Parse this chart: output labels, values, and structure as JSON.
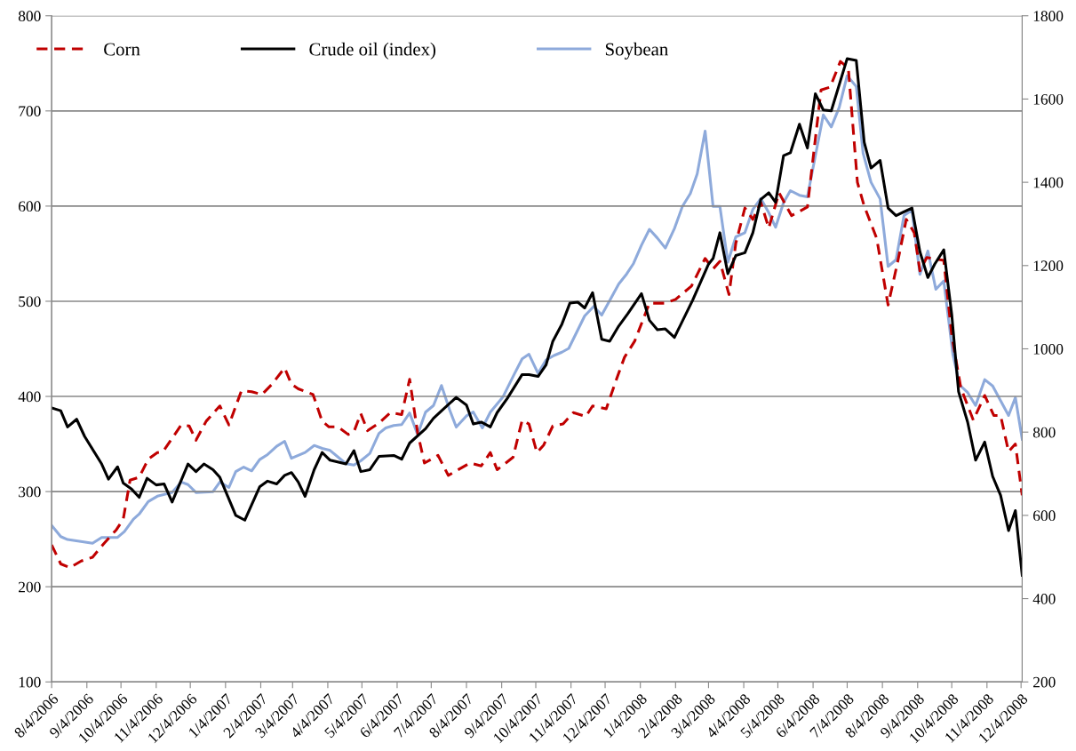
{
  "chart_data": {
    "type": "line",
    "legend": "top",
    "grid": "y",
    "xlim": [
      "2006-08-04",
      "2008-12-05"
    ],
    "xticks": [
      {
        "value": "2006-08-04",
        "label": "8/4/2006"
      },
      {
        "value": "2006-09-04",
        "label": "9/4/2006"
      },
      {
        "value": "2006-10-04",
        "label": "10/4/2006"
      },
      {
        "value": "2006-11-04",
        "label": "11/4/2006"
      },
      {
        "value": "2006-12-04",
        "label": "12/4/2006"
      },
      {
        "value": "2007-01-04",
        "label": "1/4/2007"
      },
      {
        "value": "2007-02-04",
        "label": "2/4/2007"
      },
      {
        "value": "2007-03-04",
        "label": "3/4/2007"
      },
      {
        "value": "2007-04-04",
        "label": "4/4/2007"
      },
      {
        "value": "2007-05-04",
        "label": "5/4/2007"
      },
      {
        "value": "2007-06-04",
        "label": "6/4/2007"
      },
      {
        "value": "2007-07-04",
        "label": "7/4/2007"
      },
      {
        "value": "2007-08-04",
        "label": "8/4/2007"
      },
      {
        "value": "2007-09-04",
        "label": "9/4/2007"
      },
      {
        "value": "2007-10-04",
        "label": "10/4/2007"
      },
      {
        "value": "2007-11-04",
        "label": "11/4/2007"
      },
      {
        "value": "2007-12-04",
        "label": "12/4/2007"
      },
      {
        "value": "2008-01-04",
        "label": "1/4/2008"
      },
      {
        "value": "2008-02-04",
        "label": "2/4/2008"
      },
      {
        "value": "2008-03-04",
        "label": "3/4/2008"
      },
      {
        "value": "2008-04-04",
        "label": "4/4/2008"
      },
      {
        "value": "2008-05-04",
        "label": "5/4/2008"
      },
      {
        "value": "2008-06-04",
        "label": "6/4/2008"
      },
      {
        "value": "2008-07-04",
        "label": "7/4/2008"
      },
      {
        "value": "2008-08-04",
        "label": "8/4/2008"
      },
      {
        "value": "2008-09-04",
        "label": "9/4/2008"
      },
      {
        "value": "2008-10-04",
        "label": "10/4/2008"
      },
      {
        "value": "2008-11-04",
        "label": "11/4/2008"
      },
      {
        "value": "2008-12-04",
        "label": "12/4/2008"
      }
    ],
    "ylim": [
      100,
      800
    ],
    "yticks": [
      100,
      200,
      300,
      400,
      500,
      600,
      700,
      800
    ],
    "y2lim": [
      200,
      1800
    ],
    "y2ticks": [
      200,
      400,
      600,
      800,
      1000,
      1200,
      1400,
      1600,
      1800
    ],
    "series": [
      {
        "name": "Corn",
        "color": "#c00000",
        "line_style": "dashed",
        "x": [
          "2006-08-04",
          "2006-08-12",
          "2006-08-20",
          "2006-08-30",
          "2006-09-09",
          "2006-09-18",
          "2006-09-30",
          "2006-10-06",
          "2006-10-12",
          "2006-10-20",
          "2006-10-28",
          "2006-11-05",
          "2006-11-10",
          "2006-11-26",
          "2006-12-03",
          "2006-12-09",
          "2006-12-18",
          "2006-12-30",
          "2007-01-07",
          "2007-01-18",
          "2007-01-27",
          "2007-02-05",
          "2007-02-14",
          "2007-02-25",
          "2007-03-03",
          "2007-03-09",
          "2007-03-22",
          "2007-03-30",
          "2007-04-05",
          "2007-04-13",
          "2007-04-22",
          "2007-04-27",
          "2007-05-03",
          "2007-05-09",
          "2007-05-19",
          "2007-05-29",
          "2007-06-08",
          "2007-06-15",
          "2007-06-22",
          "2007-06-28",
          "2007-07-10",
          "2007-07-19",
          "2007-08-07",
          "2007-08-17",
          "2007-08-25",
          "2007-08-31",
          "2007-09-14",
          "2007-09-22",
          "2007-09-28",
          "2007-10-05",
          "2007-10-11",
          "2007-10-19",
          "2007-10-28",
          "2007-11-06",
          "2007-11-17",
          "2007-11-23",
          "2007-12-05",
          "2007-12-14",
          "2007-12-21",
          "2007-12-30",
          "2008-01-12",
          "2008-01-26",
          "2008-02-04",
          "2008-02-18",
          "2008-03-01",
          "2008-03-08",
          "2008-03-14",
          "2008-03-22",
          "2008-03-28",
          "2008-04-05",
          "2008-04-12",
          "2008-04-19",
          "2008-04-26",
          "2008-05-05",
          "2008-05-16",
          "2008-05-30",
          "2008-06-11",
          "2008-06-19",
          "2008-06-28",
          "2008-07-05",
          "2008-07-13",
          "2008-07-19",
          "2008-07-30",
          "2008-08-09",
          "2008-08-17",
          "2008-08-25",
          "2008-09-01",
          "2008-09-06",
          "2008-09-12",
          "2008-09-27",
          "2008-10-04",
          "2008-10-12",
          "2008-10-23",
          "2008-11-02",
          "2008-11-10",
          "2008-11-16",
          "2008-11-23",
          "2008-11-29",
          "2008-12-05"
        ],
        "values": [
          244,
          224,
          220,
          227,
          231,
          244,
          260,
          271,
          312,
          315,
          334,
          341,
          342,
          370,
          369,
          354,
          374,
          390,
          370,
          406,
          405,
          402,
          413,
          430,
          413,
          408,
          402,
          374,
          368,
          368,
          360,
          363,
          382,
          364,
          372,
          383,
          381,
          418,
          362,
          330,
          338,
          317,
          330,
          327,
          341,
          323,
          336,
          375,
          371,
          341,
          349,
          369,
          371,
          383,
          379,
          390,
          387,
          418,
          441,
          458,
          498,
          498,
          502,
          516,
          545,
          534,
          542,
          507,
          561,
          598,
          586,
          604,
          577,
          614,
          590,
          599,
          722,
          725,
          752,
          745,
          625,
          600,
          566,
          496,
          539,
          586,
          572,
          532,
          546,
          543,
          464,
          409,
          375,
          401,
          380,
          380,
          342,
          350,
          296
        ]
      },
      {
        "name": "Crude oil (index)",
        "color": "#000000",
        "line_style": "solid",
        "x": [
          "2006-08-04",
          "2006-08-12",
          "2006-08-18",
          "2006-08-26",
          "2006-09-02",
          "2006-09-17",
          "2006-09-23",
          "2006-10-01",
          "2006-10-06",
          "2006-10-13",
          "2006-10-20",
          "2006-10-27",
          "2006-11-04",
          "2006-11-11",
          "2006-11-18",
          "2006-12-02",
          "2006-12-09",
          "2006-12-16",
          "2006-12-24",
          "2006-12-30",
          "2007-01-07",
          "2007-01-13",
          "2007-01-21",
          "2007-02-03",
          "2007-02-10",
          "2007-02-18",
          "2007-02-25",
          "2007-03-03",
          "2007-03-09",
          "2007-03-15",
          "2007-03-23",
          "2007-03-30",
          "2007-04-06",
          "2007-04-20",
          "2007-04-27",
          "2007-05-03",
          "2007-05-11",
          "2007-05-19",
          "2007-06-01",
          "2007-06-08",
          "2007-06-15",
          "2007-06-29",
          "2007-07-06",
          "2007-07-14",
          "2007-07-26",
          "2007-08-04",
          "2007-08-10",
          "2007-08-17",
          "2007-08-25",
          "2007-08-31",
          "2007-09-09",
          "2007-09-22",
          "2007-09-28",
          "2007-10-06",
          "2007-10-13",
          "2007-10-19",
          "2007-10-27",
          "2007-11-03",
          "2007-11-10",
          "2007-11-16",
          "2007-11-23",
          "2007-12-01",
          "2007-12-08",
          "2007-12-16",
          "2007-12-24",
          "2008-01-05",
          "2008-01-12",
          "2008-01-19",
          "2008-01-26",
          "2008-02-03",
          "2008-02-19",
          "2008-03-04",
          "2008-03-08",
          "2008-03-14",
          "2008-03-21",
          "2008-03-28",
          "2008-04-05",
          "2008-04-12",
          "2008-04-19",
          "2008-04-26",
          "2008-05-02",
          "2008-05-09",
          "2008-05-15",
          "2008-05-23",
          "2008-05-30",
          "2008-06-06",
          "2008-06-13",
          "2008-06-20",
          "2008-07-04",
          "2008-07-12",
          "2008-07-19",
          "2008-07-25",
          "2008-08-02",
          "2008-08-09",
          "2008-08-16",
          "2008-08-30",
          "2008-09-06",
          "2008-09-13",
          "2008-09-19",
          "2008-09-27",
          "2008-10-04",
          "2008-10-10",
          "2008-10-18",
          "2008-10-25",
          "2008-11-02",
          "2008-11-09",
          "2008-11-16",
          "2008-11-23",
          "2008-11-29",
          "2008-12-05"
        ],
        "values": [
          388,
          385,
          368,
          376,
          358,
          329,
          313,
          326,
          309,
          303,
          294,
          314,
          307,
          308,
          289,
          329,
          321,
          329,
          323,
          315,
          292,
          275,
          270,
          305,
          311,
          308,
          317,
          320,
          310,
          295,
          323,
          341,
          333,
          329,
          343,
          321,
          323,
          337,
          338,
          334,
          351,
          366,
          377,
          386,
          399,
          391,
          371,
          373,
          368,
          383,
          398,
          423,
          423,
          421,
          433,
          458,
          476,
          498,
          499,
          493,
          509,
          460,
          458,
          474,
          487,
          508,
          480,
          470,
          471,
          462,
          501,
          539,
          545,
          572,
          529,
          548,
          551,
          572,
          607,
          614,
          604,
          653,
          656,
          686,
          661,
          718,
          701,
          700,
          755,
          753,
          667,
          640,
          648,
          598,
          590,
          598,
          552,
          525,
          539,
          554,
          486,
          405,
          373,
          333,
          352,
          316,
          296,
          259,
          280,
          212
        ]
      },
      {
        "name": "Soybean",
        "color": "#8eaadb",
        "line_style": "solid",
        "axis": "y2",
        "x": [
          "2006-08-04",
          "2006-08-12",
          "2006-08-18",
          "2006-09-09",
          "2006-09-17",
          "2006-10-01",
          "2006-10-07",
          "2006-10-15",
          "2006-10-20",
          "2006-10-28",
          "2006-11-05",
          "2006-11-18",
          "2006-11-26",
          "2006-12-02",
          "2006-12-09",
          "2006-12-24",
          "2006-12-30",
          "2007-01-07",
          "2007-01-13",
          "2007-01-20",
          "2007-01-27",
          "2007-02-03",
          "2007-02-10",
          "2007-02-18",
          "2007-02-25",
          "2007-03-03",
          "2007-03-15",
          "2007-03-23",
          "2007-03-30",
          "2007-04-06",
          "2007-04-20",
          "2007-04-27",
          "2007-05-03",
          "2007-05-11",
          "2007-05-19",
          "2007-05-25",
          "2007-06-01",
          "2007-06-08",
          "2007-06-15",
          "2007-06-22",
          "2007-06-29",
          "2007-07-06",
          "2007-07-13",
          "2007-07-20",
          "2007-07-26",
          "2007-08-04",
          "2007-08-10",
          "2007-08-18",
          "2007-08-25",
          "2007-09-05",
          "2007-09-15",
          "2007-09-22",
          "2007-09-28",
          "2007-10-06",
          "2007-10-13",
          "2007-10-20",
          "2007-10-27",
          "2007-11-02",
          "2007-11-16",
          "2007-11-24",
          "2007-12-01",
          "2007-12-08",
          "2007-12-16",
          "2007-12-23",
          "2007-12-29",
          "2008-01-05",
          "2008-01-12",
          "2008-01-19",
          "2008-01-26",
          "2008-02-03",
          "2008-02-10",
          "2008-02-17",
          "2008-02-23",
          "2008-03-01",
          "2008-03-08",
          "2008-03-14",
          "2008-03-21",
          "2008-03-28",
          "2008-04-05",
          "2008-04-12",
          "2008-04-19",
          "2008-04-26",
          "2008-05-02",
          "2008-05-09",
          "2008-05-15",
          "2008-05-23",
          "2008-05-30",
          "2008-06-13",
          "2008-06-20",
          "2008-06-27",
          "2008-07-04",
          "2008-07-12",
          "2008-07-18",
          "2008-07-25",
          "2008-08-02",
          "2008-08-09",
          "2008-08-16",
          "2008-08-23",
          "2008-08-30",
          "2008-09-06",
          "2008-09-13",
          "2008-09-20",
          "2008-09-27",
          "2008-10-05",
          "2008-10-11",
          "2008-10-18",
          "2008-10-25",
          "2008-11-02",
          "2008-11-09",
          "2008-11-23",
          "2008-11-29",
          "2008-12-05"
        ],
        "values": [
          576,
          549,
          542,
          533,
          547,
          547,
          561,
          591,
          603,
          633,
          646,
          655,
          680,
          674,
          655,
          657,
          680,
          667,
          705,
          716,
          707,
          734,
          746,
          766,
          778,
          737,
          751,
          768,
          761,
          756,
          724,
          721,
          731,
          749,
          797,
          810,
          816,
          818,
          846,
          794,
          848,
          864,
          912,
          855,
          812,
          839,
          848,
          810,
          848,
          884,
          939,
          976,
          987,
          941,
          973,
          984,
          992,
          1001,
          1079,
          1102,
          1081,
          1116,
          1156,
          1180,
          1205,
          1249,
          1287,
          1266,
          1242,
          1289,
          1342,
          1373,
          1420,
          1523,
          1342,
          1342,
          1208,
          1269,
          1279,
          1335,
          1361,
          1327,
          1292,
          1351,
          1380,
          1369,
          1365,
          1562,
          1533,
          1580,
          1656,
          1630,
          1470,
          1400,
          1360,
          1198,
          1214,
          1320,
          1333,
          1179,
          1235,
          1143,
          1163,
          987,
          913,
          895,
          864,
          926,
          911,
          840,
          883,
          783
        ]
      }
    ]
  }
}
